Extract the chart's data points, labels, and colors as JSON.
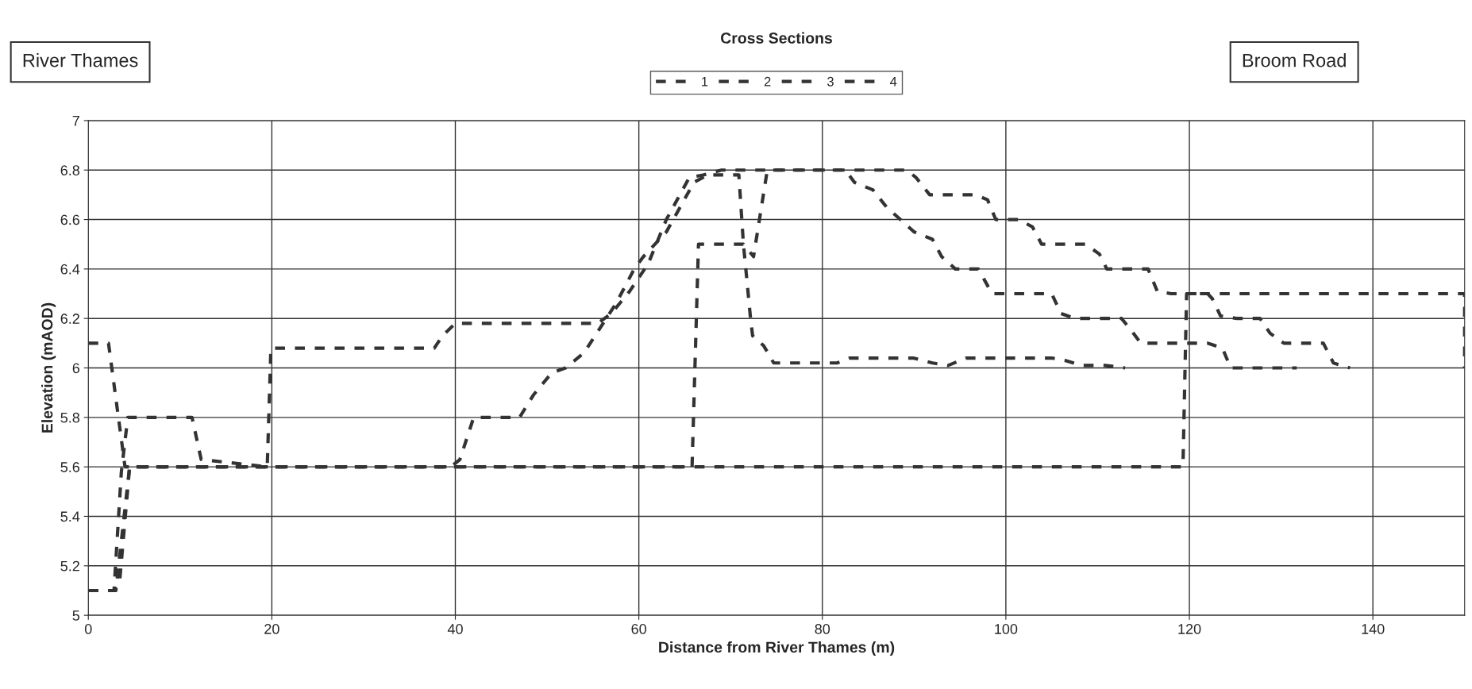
{
  "chart_data": {
    "type": "line",
    "title": "Cross Sections",
    "xlabel": "Distance from River Thames (m)",
    "ylabel": "Elevation (mAOD)",
    "annotations": [
      "River Thames",
      "Broom Road"
    ],
    "xlim": [
      0,
      150
    ],
    "xticks": [
      0,
      20,
      40,
      60,
      80,
      100,
      120,
      140
    ],
    "ylim": [
      5,
      7
    ],
    "yticks": [
      5,
      5.2,
      5.4,
      5.6,
      5.8,
      6,
      6.2,
      6.4,
      6.6,
      6.8,
      7
    ],
    "grid": true,
    "legend": "top",
    "line_style": "dashed",
    "marker": "none",
    "series": [
      {
        "name": "1",
        "color": "#333333",
        "x": [
          0,
          2.2,
          4,
          119.3,
          119.7,
          150,
          150
        ],
        "values": [
          6.1,
          6.1,
          5.6,
          5.6,
          6.3,
          6.3,
          6.0
        ]
      },
      {
        "name": "2",
        "color": "#333333",
        "x": [
          0,
          2.8,
          3.6,
          4.3,
          11.3,
          12.3,
          19.5,
          19.9,
          37.7,
          38.6,
          40,
          55.5,
          57,
          59,
          61,
          63,
          65.5,
          67,
          69,
          89.2,
          90.2,
          91.7,
          96.7,
          98,
          98.9,
          101.4,
          102.9,
          103.9,
          108.7,
          110.2,
          111,
          115.5,
          116.5,
          118,
          122,
          122.5,
          123.4,
          125.2,
          127.7,
          128.8,
          130.3,
          134.6,
          135.7,
          137.5
        ],
        "values": [
          5.1,
          5.1,
          5.58,
          5.8,
          5.8,
          5.63,
          5.6,
          6.08,
          6.08,
          6.13,
          6.18,
          6.18,
          6.22,
          6.31,
          6.42,
          6.6,
          6.77,
          6.78,
          6.8,
          6.8,
          6.77,
          6.7,
          6.7,
          6.68,
          6.6,
          6.6,
          6.57,
          6.5,
          6.5,
          6.46,
          6.4,
          6.4,
          6.31,
          6.3,
          6.3,
          6.28,
          6.21,
          6.2,
          6.2,
          6.14,
          6.1,
          6.1,
          6.02,
          6.0
        ]
      },
      {
        "name": "3",
        "color": "#333333",
        "x": [
          0,
          2.8,
          3.4,
          4.5,
          38,
          39.5,
          40.5,
          42,
          47,
          48.5,
          50.5,
          52,
          54,
          57.5,
          59.5,
          60.5,
          63,
          66,
          67.5,
          70.9,
          71.4,
          72.2,
          72.4,
          73.6,
          74.7,
          76.5,
          81.6,
          83,
          85.5,
          87.7,
          89.9,
          92,
          93.7,
          95.7,
          105,
          106.5,
          108.2,
          110.8,
          113
        ],
        "values": [
          5.1,
          5.1,
          5.13,
          5.6,
          5.6,
          5.6,
          5.63,
          5.8,
          5.8,
          5.89,
          5.98,
          6.0,
          6.06,
          6.26,
          6.4,
          6.45,
          6.55,
          6.75,
          6.78,
          6.78,
          6.5,
          6.19,
          6.13,
          6.09,
          6.02,
          6.02,
          6.02,
          6.04,
          6.04,
          6.04,
          6.04,
          6.02,
          6.01,
          6.04,
          6.04,
          6.03,
          6.01,
          6.01,
          6.0
        ]
      },
      {
        "name": "4",
        "color": "#333333",
        "x": [
          0,
          3,
          4.5,
          65.8,
          66.5,
          68.9,
          71.4,
          72.5,
          74,
          82.5,
          83.5,
          85.5,
          87,
          88.5,
          90,
          92,
          93,
          94.5,
          97,
          98.5,
          105,
          106,
          107.5,
          112.6,
          113.7,
          114.7,
          122,
          123.6,
          124.5,
          131.7
        ],
        "values": [
          5.1,
          5.1,
          5.6,
          5.6,
          6.5,
          6.5,
          6.5,
          6.45,
          6.8,
          6.8,
          6.75,
          6.72,
          6.65,
          6.6,
          6.55,
          6.52,
          6.45,
          6.4,
          6.4,
          6.3,
          6.3,
          6.22,
          6.2,
          6.2,
          6.15,
          6.1,
          6.1,
          6.08,
          6.0,
          6.0
        ]
      }
    ]
  }
}
